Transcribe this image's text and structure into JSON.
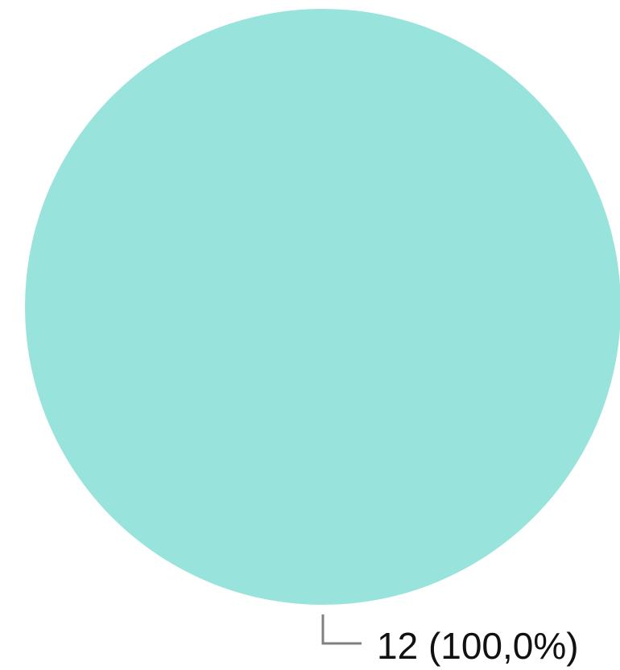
{
  "chart_data": {
    "type": "pie",
    "title": "",
    "slices": [
      {
        "value": 12,
        "percent": 100.0,
        "label": "12 (100,0%)",
        "color": "#98E3DB"
      }
    ]
  },
  "colors": {
    "leader_line": "#808080",
    "label_text": "#111111"
  }
}
